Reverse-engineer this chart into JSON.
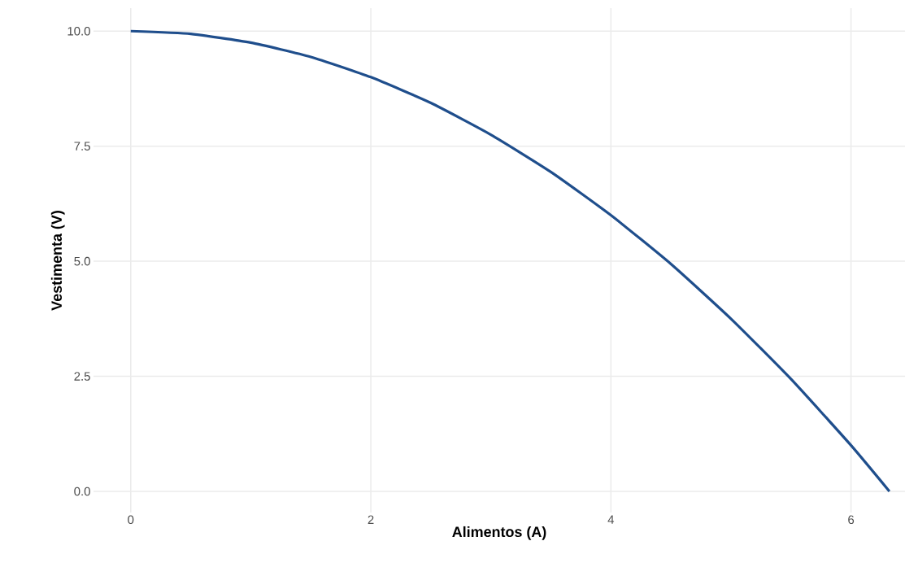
{
  "chart_data": {
    "type": "line",
    "xlabel": "Alimentos (A)",
    "ylabel": "Vestimenta (V)",
    "x": [
      0,
      0.5,
      1,
      1.5,
      2,
      2.5,
      3,
      3.5,
      4,
      4.5,
      5,
      5.5,
      6,
      6.32
    ],
    "series": [
      {
        "color": "#1f4e8c",
        "values": [
          10,
          9.94,
          9.75,
          9.44,
          9,
          8.44,
          7.75,
          6.94,
          6,
          4.94,
          3.75,
          2.44,
          1,
          0
        ]
      }
    ],
    "xlim": [
      -0.31,
      6.45
    ],
    "ylim": [
      -0.46,
      10.5
    ],
    "xticks": [
      0,
      2,
      4,
      6
    ],
    "yticks": [
      {
        "value": 0,
        "label": "0.0"
      },
      {
        "value": 2.5,
        "label": "2.5"
      },
      {
        "value": 5,
        "label": "5.0"
      },
      {
        "value": 7.5,
        "label": "7.5"
      },
      {
        "value": 10,
        "label": "10.0"
      }
    ],
    "grid": true,
    "marker": "none",
    "line_style": "solid"
  }
}
